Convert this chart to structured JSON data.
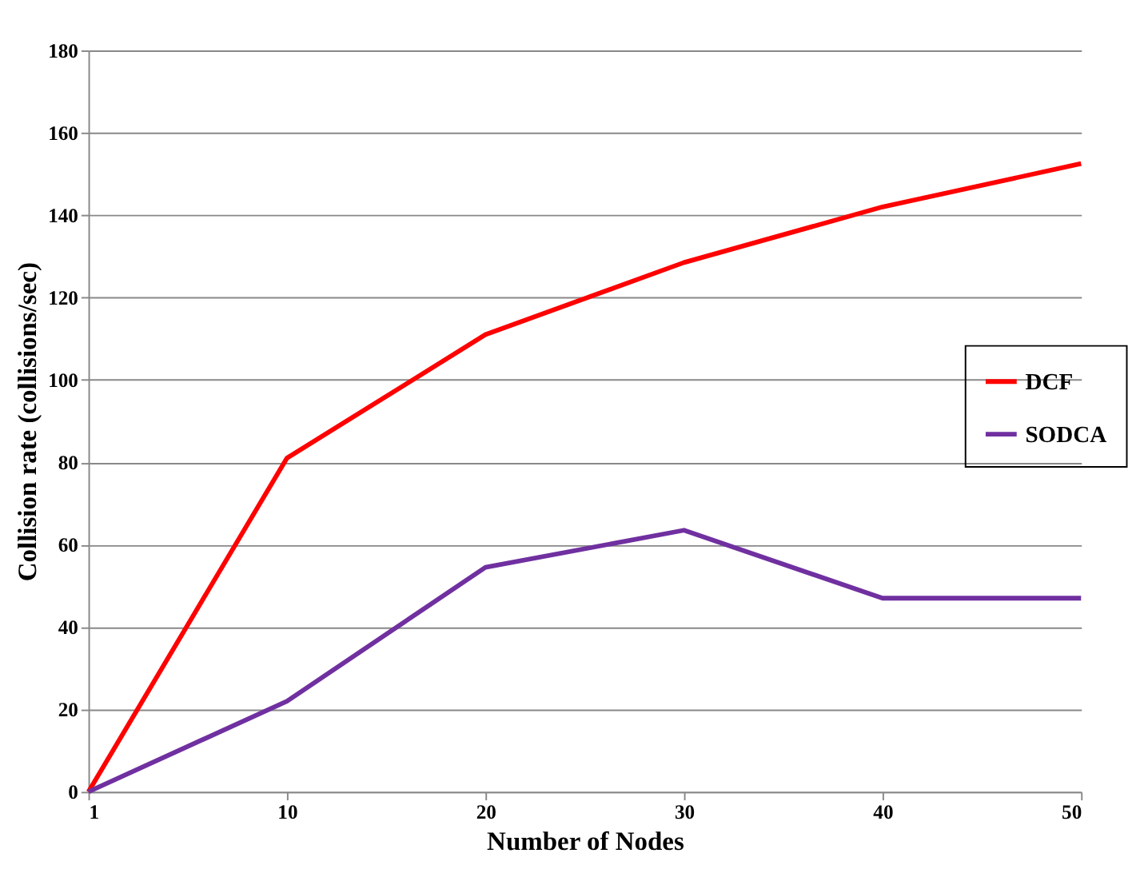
{
  "chart_data": {
    "type": "line",
    "xlabel": "Number of Nodes",
    "ylabel": "Collision rate (collisions/sec)",
    "categories": [
      "1",
      "10",
      "20",
      "30",
      "40",
      "50"
    ],
    "series": [
      {
        "name": "DCF",
        "color": "#ff0000",
        "values": [
          0,
          81,
          111,
          128.5,
          142,
          152.5
        ]
      },
      {
        "name": "SODCA",
        "color": "#7030a0",
        "values": [
          0,
          22,
          54.5,
          63.5,
          47,
          47
        ]
      }
    ],
    "ylim": [
      0,
      180
    ],
    "yticks": [
      0,
      20,
      40,
      60,
      80,
      100,
      120,
      140,
      160,
      180
    ],
    "grid": "y",
    "legend": "right",
    "marker": "none",
    "line_style": "solid"
  }
}
